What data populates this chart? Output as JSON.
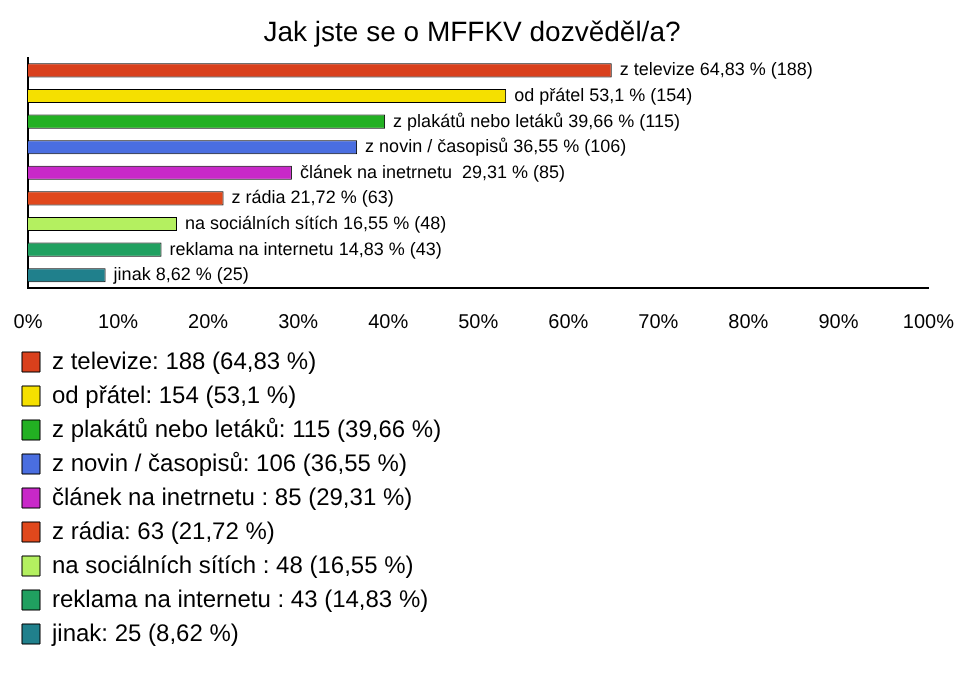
{
  "chart_data": {
    "type": "bar",
    "orientation": "horizontal",
    "stacked": true,
    "title": "Jak jste se o MFFKV dozvěděl/a?",
    "categories": [
      null,
      null,
      null,
      null,
      null,
      null,
      null,
      null,
      null
    ],
    "series": [
      {
        "name": "z televize: 188 (64,83 %)",
        "color": "#d9401c",
        "values": [
          64.83,
          null,
          null,
          null,
          null,
          null,
          null,
          null,
          null
        ],
        "value_labels": [
          "z televize 64,83 % (188)",
          null,
          null,
          null,
          null,
          null,
          null,
          null,
          null
        ]
      },
      {
        "name": "od přátel: 154 (53,1 %)",
        "color": "#f5e000",
        "values": [
          null,
          53.1,
          null,
          null,
          null,
          null,
          null,
          null,
          null
        ],
        "value_labels": [
          null,
          "od přátel 53,1 % (154)",
          null,
          null,
          null,
          null,
          null,
          null,
          null
        ]
      },
      {
        "name": "z plakátů nebo letáků: 115 (39,66 %)",
        "color": "#22b022",
        "values": [
          null,
          null,
          39.66,
          null,
          null,
          null,
          null,
          null,
          null
        ],
        "value_labels": [
          null,
          null,
          "z plakátů nebo letáků 39,66 % (115)",
          null,
          null,
          null,
          null,
          null,
          null
        ]
      },
      {
        "name": "z novin / časopisů: 106 (36,55 %)",
        "color": "#4a6ee0",
        "values": [
          null,
          null,
          null,
          36.55,
          null,
          null,
          null,
          null,
          null
        ],
        "value_labels": [
          null,
          null,
          null,
          "z novin / časopisů 36,55 % (106)",
          null,
          null,
          null,
          null,
          null
        ]
      },
      {
        "name": "článek na inetrnetu : 85 (29,31 %)",
        "color": "#c828c8",
        "values": [
          null,
          null,
          null,
          null,
          29.31,
          null,
          null,
          null,
          null
        ],
        "value_labels": [
          null,
          null,
          null,
          null,
          "článek na inetrnetu  29,31 % (85)",
          null,
          null,
          null,
          null
        ]
      },
      {
        "name": "z rádia: 63 (21,72 %)",
        "color": "#e0481c",
        "values": [
          null,
          null,
          null,
          null,
          null,
          21.72,
          null,
          null,
          null
        ],
        "value_labels": [
          null,
          null,
          null,
          null,
          null,
          "z rádia 21,72 % (63)",
          null,
          null,
          null
        ]
      },
      {
        "name": "na sociálních sítích : 48 (16,55 %)",
        "color": "#b4f060",
        "values": [
          null,
          null,
          null,
          null,
          null,
          null,
          16.55,
          null,
          null
        ],
        "value_labels": [
          null,
          null,
          null,
          null,
          null,
          null,
          "na sociálních sítích 16,55 % (48)",
          null,
          null
        ]
      },
      {
        "name": "reklama na internetu : 43 (14,83 %)",
        "color": "#20a060",
        "values": [
          null,
          null,
          null,
          null,
          null,
          null,
          null,
          14.83,
          null
        ],
        "value_labels": [
          null,
          null,
          null,
          null,
          null,
          null,
          null,
          "reklama na internetu 14,83 % (43)",
          null
        ]
      },
      {
        "name": "jinak: 25 (8,62 %)",
        "color": "#20808c",
        "values": [
          null,
          null,
          null,
          null,
          null,
          null,
          null,
          null,
          8.62
        ],
        "value_labels": [
          null,
          null,
          null,
          null,
          null,
          null,
          null,
          null,
          "jinak 8,62 % (25)"
        ]
      }
    ],
    "xlim": [
      0,
      100
    ],
    "xticks": [
      {
        "value": 0,
        "label": "0%"
      },
      {
        "value": 10,
        "label": "10%"
      },
      {
        "value": 20,
        "label": "20%"
      },
      {
        "value": 30,
        "label": "30%"
      },
      {
        "value": 40,
        "label": "40%"
      },
      {
        "value": 50,
        "label": "50%"
      },
      {
        "value": 60,
        "label": "60%"
      },
      {
        "value": 70,
        "label": "70%"
      },
      {
        "value": 80,
        "label": "80%"
      },
      {
        "value": 90,
        "label": "90%"
      },
      {
        "value": 100,
        "label": "100%"
      }
    ],
    "tick_labels": "x",
    "legend": "bottom"
  }
}
